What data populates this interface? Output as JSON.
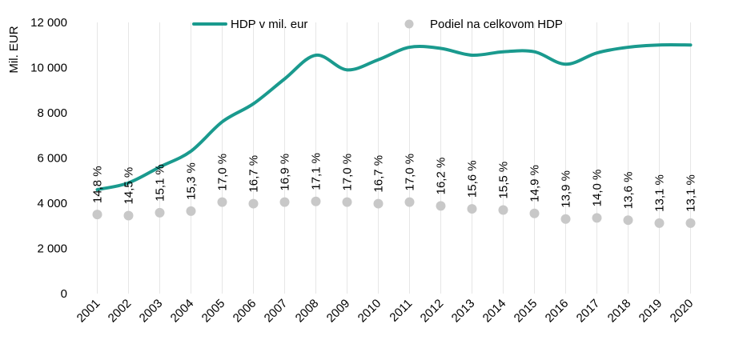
{
  "chart_data": {
    "type": "line",
    "ylabel": "Mil. EUR",
    "ylim": [
      0,
      12000
    ],
    "yticks": [
      0,
      2000,
      4000,
      6000,
      8000,
      10000,
      12000
    ],
    "ytick_labels": [
      "0",
      "2 000",
      "4 000",
      "6 000",
      "8 000",
      "10 000",
      "12 000"
    ],
    "grid": "vertical",
    "legend_position": "top",
    "categories": [
      "2001",
      "2002",
      "2003",
      "2004",
      "2005",
      "2006",
      "2007",
      "2008",
      "2009",
      "2010",
      "2011",
      "2012",
      "2013",
      "2014",
      "2015",
      "2016",
      "2017",
      "2018",
      "2019",
      "2020"
    ],
    "series": [
      {
        "name": "HDP v mil. eur",
        "kind": "line",
        "color": "#1a9a8e",
        "values": [
          4600,
          4900,
          5600,
          6300,
          7600,
          8400,
          9500,
          10550,
          9900,
          10350,
          10900,
          10850,
          10550,
          10700,
          10700,
          10150,
          10650,
          10900,
          11000,
          11000
        ]
      },
      {
        "name": "Podiel na celkovom HDP",
        "kind": "scatter",
        "color": "#c8c8c8",
        "values": [
          3500,
          3450,
          3580,
          3650,
          4050,
          3980,
          4050,
          4080,
          4050,
          3980,
          4050,
          3880,
          3750,
          3700,
          3550,
          3300,
          3350,
          3250,
          3120,
          3120
        ],
        "labels": [
          "14,8 %",
          "14,5 %",
          "15,1 %",
          "15,3 %",
          "17,0 %",
          "16,7 %",
          "16,9 %",
          "17,1 %",
          "17,0 %",
          "16,7 %",
          "17,0 %",
          "16,2 %",
          "15,6 %",
          "15,5 %",
          "14,9 %",
          "13,9 %",
          "14,0 %",
          "13,6 %",
          "13,1 %",
          "13,1 %"
        ]
      }
    ]
  }
}
